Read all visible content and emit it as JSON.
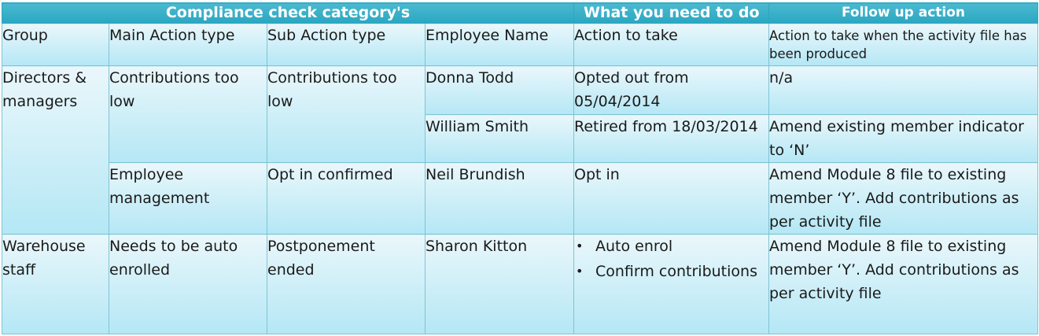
{
  "header": {
    "col1": "Compliance  check category's",
    "col2": "What you need to do",
    "col3": "Follow up action"
  },
  "columns": {
    "group": "Group",
    "main_action_type": "Main Action type",
    "sub_action_type": "Sub Action type",
    "employee_name": "Employee Name",
    "action_to_take": "Action to take",
    "follow_up": "Action to take when the activity file has been produced"
  },
  "rows": {
    "directors": {
      "group": "Directors & managers",
      "main_action_1": "Contributions too low",
      "sub_action_1": "Contributions too low",
      "emp_1": "Donna Todd",
      "action_1": "Opted out from 05/04/2014",
      "follow_1": "n/a",
      "emp_2": "William Smith",
      "action_2": "Retired from 18/03/2014",
      "follow_2": "Amend existing member indicator to ‘N’",
      "main_action_2": "Employee management",
      "sub_action_2": "Opt in confirmed",
      "emp_3": "Neil Brundish",
      "action_3": "Opt in",
      "follow_3": "Amend Module 8 file to existing member ‘Y’. Add contributions as per activity file"
    },
    "warehouse": {
      "group": "Warehouse staff",
      "main_action": "Needs to be auto enrolled",
      "sub_action": "Postponement ended",
      "emp": "Sharon Kitton",
      "bullet_char": "•",
      "actions": [
        "Auto enrol",
        "Confirm contributions"
      ],
      "follow": "Amend Module 8 file to existing member ‘Y’. Add contributions as per activity file"
    }
  }
}
